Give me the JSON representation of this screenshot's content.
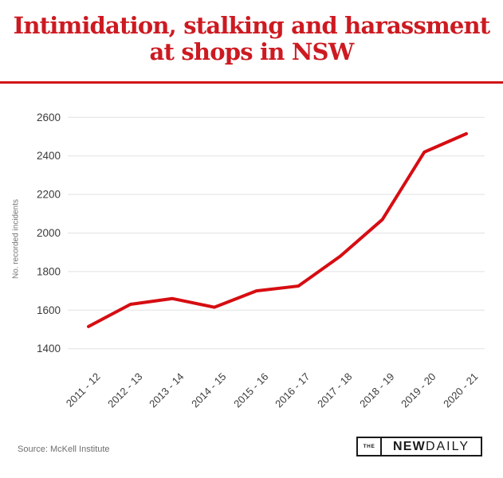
{
  "header": {
    "title_line1": "Intimidation, stalking and harassment",
    "title_line2": "at shops in NSW"
  },
  "footer": {
    "source": "Source: McKell Institute",
    "logo": {
      "the": "THE",
      "new": "NEW",
      "daily": "DAILY"
    }
  },
  "colors": {
    "accent_red": "#cd1a21",
    "line_red": "#d60d12",
    "grid_gray": "#e2e2e2",
    "axis_text": "#3b3b3b",
    "muted_text": "#757575"
  },
  "chart_data": {
    "type": "line",
    "title": "Intimidation, stalking and harassment at shops in NSW",
    "xlabel": "",
    "ylabel": "No. recorded incidents",
    "categories": [
      "2011 - 12",
      "2012 - 13",
      "2013 - 14",
      "2014 - 15",
      "2015 - 16",
      "2016 - 17",
      "2017 - 18",
      "2018 - 19",
      "2019 - 20",
      "2020 - 21"
    ],
    "values": [
      1515,
      1630,
      1660,
      1615,
      1700,
      1725,
      1880,
      2070,
      2420,
      2515
    ],
    "ylim": [
      1400,
      2600
    ],
    "y_ticks": [
      1400,
      1600,
      1800,
      2000,
      2200,
      2400,
      2600
    ],
    "grid": "horizontal",
    "legend": "none",
    "line_color": "#d60d12"
  }
}
